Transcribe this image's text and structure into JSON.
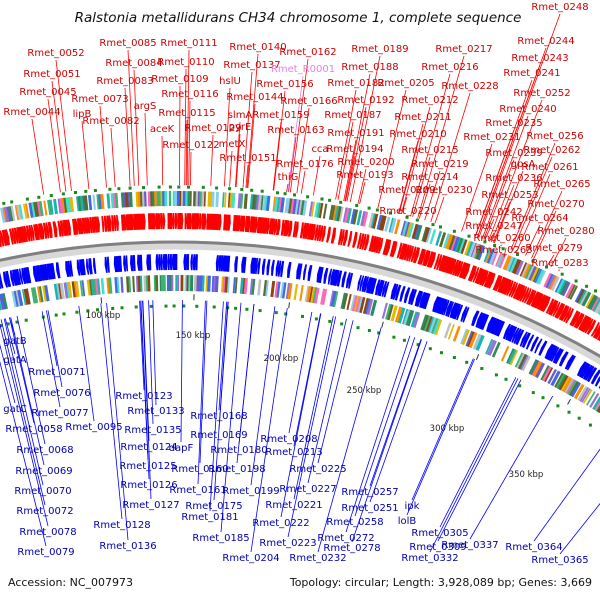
{
  "title": "Ralstonia metallidurans CH34 chromosome 1, complete sequence",
  "footer": {
    "accession": "Accession: NC_007973",
    "summary": "Topology: circular; Length: 3,928,089 bp; Genes: 3,669"
  },
  "colors": {
    "forward": "#ff0000",
    "reverse": "#0000ff",
    "highlight": "#e87ee8",
    "backbone_dark": "#808080",
    "backbone_light": "#d8d8d8",
    "marker": "#1a8a1a"
  },
  "tick_labels": [
    "100 kbp",
    "150 kbp",
    "200 kbp",
    "250 kbp",
    "300 kbp",
    "350 kbp"
  ],
  "forward_labels": [
    "Rmet_0248",
    "Rmet_0244",
    "Rmet_0243",
    "Rmet_0241",
    "Rmet_0252",
    "Rmet_0240",
    "Rmet_0235",
    "Rmet_0256",
    "Rmet_0231",
    "Rmet_0262",
    "Rmet_0239",
    "Rmet_0261",
    "Rmet_0236",
    "gpsA",
    "Rmet_0265",
    "Rmet_0253",
    "Rmet_0270",
    "Rmet_0242",
    "Rmet_0264",
    "Rmet_0247",
    "Rmet_0280",
    "Rmet_0260",
    "Rmet_0279",
    "Rmet_0263",
    "Rmet_0283",
    "Rmet_0217",
    "Rmet_0216",
    "Rmet_0228",
    "Rmet_0212",
    "Rmet_0211",
    "Rmet_0210",
    "Rmet_0215",
    "Rmet_0219",
    "Rmet_0214",
    "Rmet_0230",
    "Rmet_0209",
    "Rmet_0220",
    "Rmet_0205",
    "Rmet_0189",
    "Rmet_0188",
    "Rmet_0182",
    "Rmet_0192",
    "Rmet_0187",
    "Rmet_0191",
    "Rmet_0194",
    "Rmet_0200",
    "Rmet_0193",
    "Rmet_0162",
    "Rmet_0166",
    "Rmet_0163",
    "Rmet_0176",
    "cca",
    "thiG",
    "Rmet_0140",
    "Rmet_0137",
    "Rmet_0156",
    "Rmet_0159",
    "Rmet_0144",
    "slmA",
    "hslU",
    "pyrE",
    "metX",
    "Rmet_0151",
    "Rmet_0085",
    "Rmet_0111",
    "Rmet_0084",
    "Rmet_0110",
    "Rmet_0083",
    "Rmet_0109",
    "Rmet_0116",
    "Rmet_0115",
    "Rmet_0129",
    "Rmet_0122",
    "argS",
    "aceK",
    "Rmet_0052",
    "Rmet_0051",
    "Rmet_0045",
    "Rmet_0044",
    "lipB",
    "Rmet_0073",
    "Rmet_0082"
  ],
  "highlight_label": "Rmet_R0001",
  "reverse_labels": [
    "gatB",
    "gatA",
    "gatC",
    "Rmet_0058",
    "Rmet_0071",
    "Rmet_0076",
    "Rmet_0077",
    "Rmet_0095",
    "Rmet_0068",
    "Rmet_0069",
    "Rmet_0070",
    "Rmet_0072",
    "Rmet_0078",
    "Rmet_0079",
    "Rmet_0123",
    "Rmet_0133",
    "Rmet_0135",
    "Rmet_0124",
    "Rmet_0125",
    "Rmet_0126",
    "Rmet_0127",
    "Rmet_0128",
    "Rmet_0136",
    "Rmet_0168",
    "Rmet_0169",
    "dapF",
    "Rmet_0180",
    "Rmet_0160",
    "Rmet_0161",
    "Rmet_0175",
    "Rmet_0181",
    "Rmet_0185",
    "Rmet_0208",
    "Rmet_0213",
    "Rmet_0198",
    "Rmet_0225",
    "Rmet_0199",
    "Rmet_0227",
    "Rmet_0221",
    "Rmet_0222",
    "Rmet_0223",
    "Rmet_0204",
    "Rmet_0232",
    "Rmet_0257",
    "Rmet_0251",
    "Rmet_0258",
    "Rmet_0272",
    "Rmet_0278",
    "ipk",
    "lolB",
    "Rmet_0305",
    "Rmet_0309",
    "Rmet_0337",
    "Rmet_0332",
    "Rmet_0364",
    "Rmet_0365"
  ]
}
